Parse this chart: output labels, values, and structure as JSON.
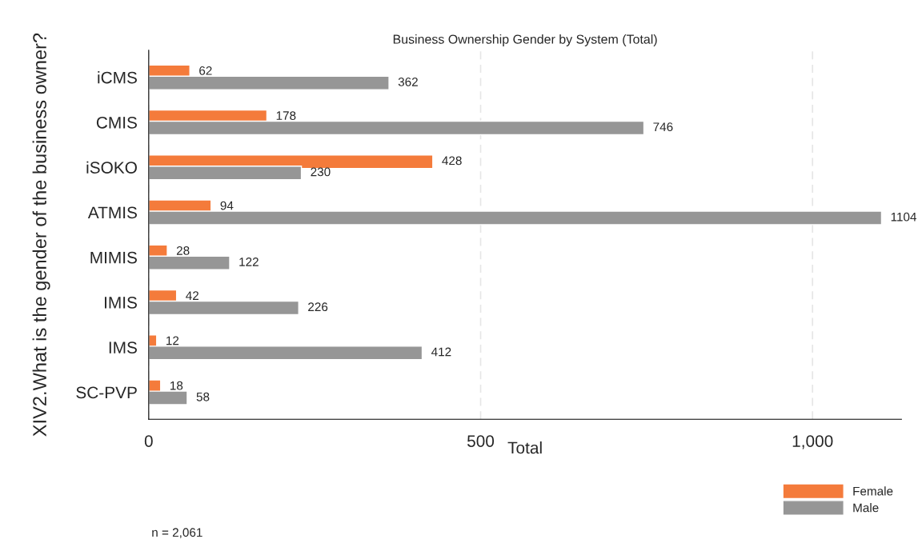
{
  "chart_data": {
    "type": "bar",
    "orientation": "horizontal",
    "title": "Business Ownership Gender by System (Total)",
    "xlabel": "Total",
    "ylabel": "XIV2.What is the gender of the business owner?",
    "categories": [
      "iCMS",
      "CMIS",
      "iSOKO",
      "ATMIS",
      "MIMIS",
      "IMIS",
      "IMS",
      "SC-PVP"
    ],
    "series": [
      {
        "name": "Female",
        "color": "#f47b3b",
        "values": [
          62,
          178,
          428,
          94,
          28,
          42,
          12,
          18
        ]
      },
      {
        "name": "Male",
        "color": "#969696",
        "values": [
          362,
          746,
          230,
          1104,
          122,
          226,
          412,
          58
        ]
      }
    ],
    "xlim": [
      0,
      1134
    ],
    "xticks": [
      0,
      500,
      {
        "value": 1000,
        "label": "1,000"
      }
    ],
    "grid": "x",
    "legend": "bottom right",
    "data_labels": true,
    "annotations": [
      "n = 2,061"
    ]
  }
}
